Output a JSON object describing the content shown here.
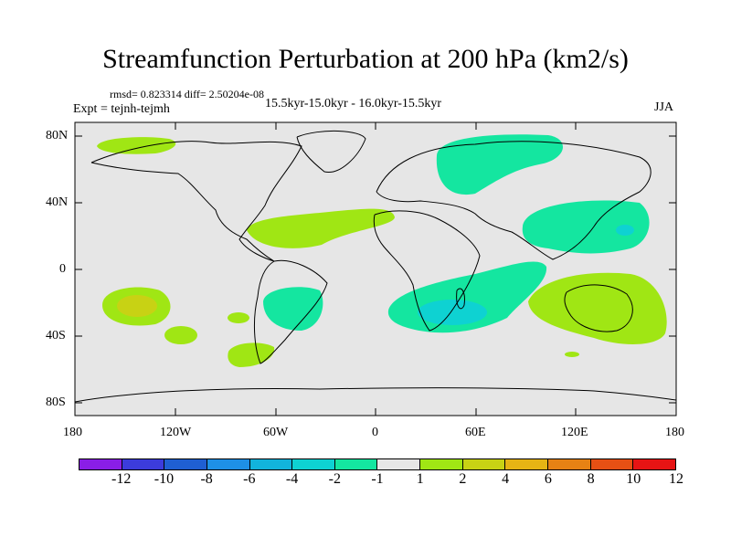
{
  "title": "Streamfunction Perturbation at 200 hPa (km2/s)",
  "stats": "rmsd= 0.823314 diff= 2.50204e-08",
  "experiment": "Expt = tejnh-tejmh",
  "period": "15.5kyr-15.0kyr - 16.0kyr-15.5kyr",
  "season": "JJA",
  "lat_labels": [
    "80N",
    "40N",
    "0",
    "40S",
    "80S"
  ],
  "lon_labels": [
    "180",
    "120W",
    "60W",
    "0",
    "60E",
    "120E",
    "180"
  ],
  "colorbar": {
    "labels": [
      "-12",
      "-10",
      "-8",
      "-6",
      "-4",
      "-2",
      "-1",
      "1",
      "2",
      "4",
      "6",
      "8",
      "10",
      "12"
    ],
    "colors": [
      "#8a1ee6",
      "#3c3cdc",
      "#1f5fd2",
      "#1e90e6",
      "#12b4dc",
      "#0ed2d2",
      "#14e6a0",
      "#e6e6e6",
      "#a0e614",
      "#c8d214",
      "#e6b414",
      "#e68214",
      "#e65014",
      "#e61414"
    ]
  },
  "colors": {
    "ocean": "#e6e6e6",
    "pos2": "#a0e614",
    "pos4": "#c8d214",
    "neg2": "#14e6a0",
    "neg4": "#0ed2d2"
  }
}
